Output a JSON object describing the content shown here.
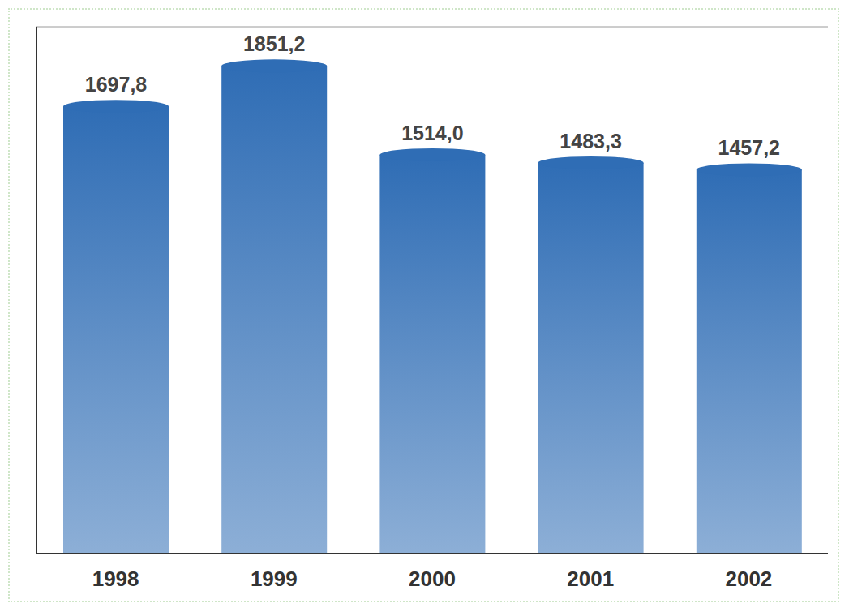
{
  "chart_data": {
    "type": "bar",
    "categories": [
      "1998",
      "1999",
      "2000",
      "2001",
      "2002"
    ],
    "values": [
      1697.8,
      1851.2,
      1514.0,
      1483.3,
      1457.2
    ],
    "value_labels": [
      "1697,8",
      "1851,2",
      "1514,0",
      "1483,3",
      "1457,2"
    ],
    "color": "#2f6db5",
    "ylim": [
      0,
      2000
    ],
    "yticks": [
      0,
      333.3,
      666.7,
      1000,
      1333.3,
      1666.7,
      2000
    ],
    "grid": true,
    "data_labels": true,
    "tick_labels": "x"
  }
}
